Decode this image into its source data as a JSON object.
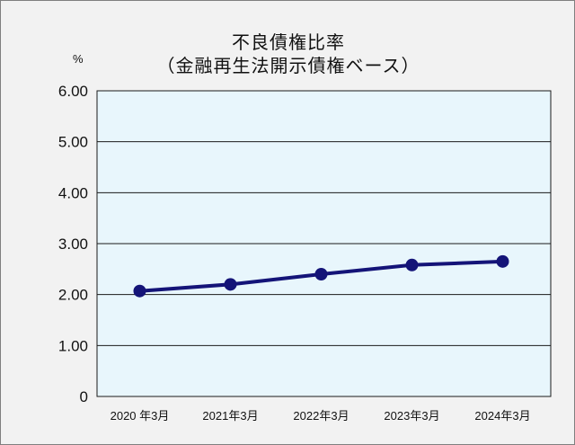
{
  "chart_data": {
    "type": "line",
    "title": "不良債権比率",
    "subtitle": "（金融再生法開示債権ベース）",
    "y_unit": "%",
    "categories": [
      "2020 年3月",
      "2021年3月",
      "2022年3月",
      "2023年3月",
      "2024年3月"
    ],
    "series": [
      {
        "values": [
          2.07,
          2.2,
          2.4,
          2.58,
          2.65
        ]
      }
    ],
    "y_ticks": [
      "0",
      "1.00",
      "2.00",
      "3.00",
      "4.00",
      "5.00",
      "6.00"
    ],
    "ylim": [
      0,
      6
    ],
    "grid": true,
    "legend": "none",
    "colors": {
      "background": "#f2f2f2",
      "plot_area": "#e8f6fc",
      "line": "#141478",
      "grid": "#1a1a1a",
      "text": "#111111"
    }
  }
}
